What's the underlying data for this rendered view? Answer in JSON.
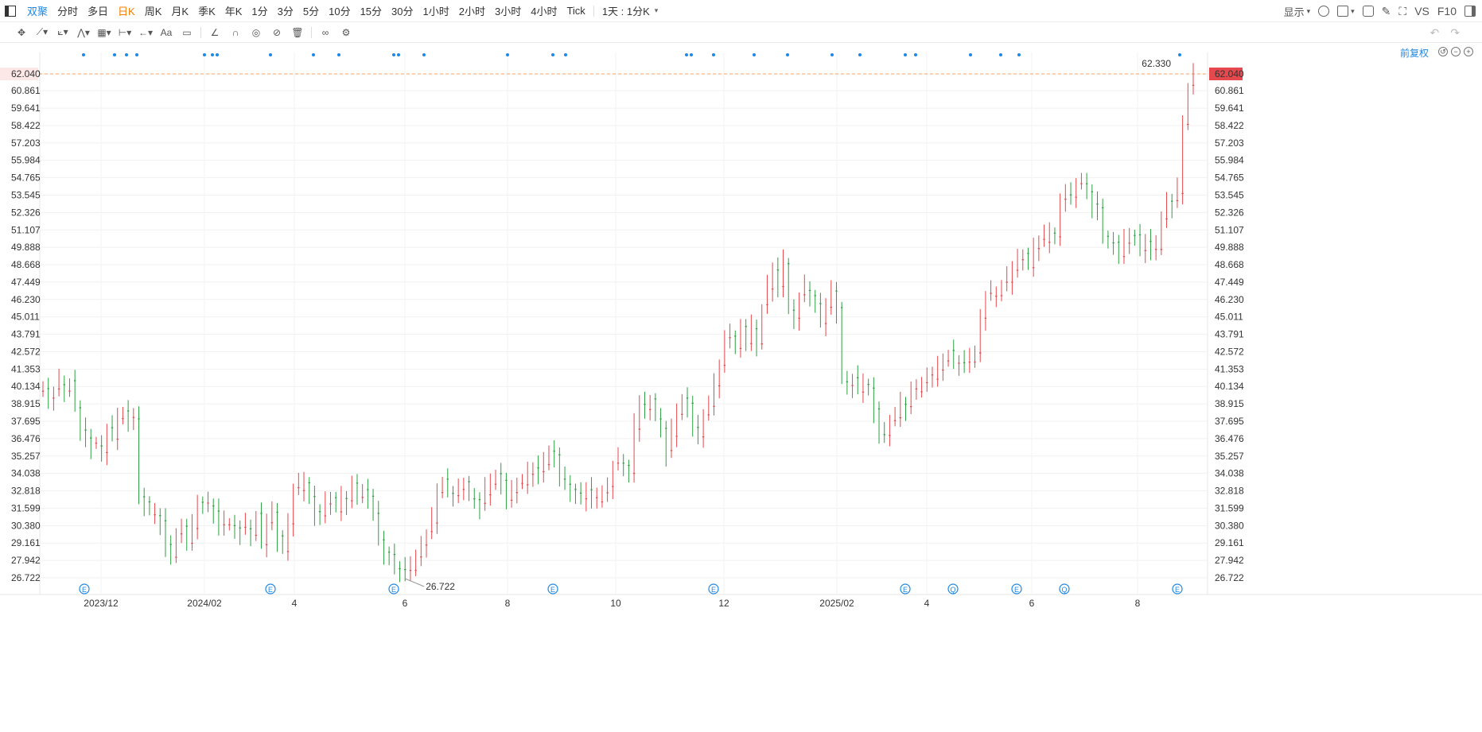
{
  "tabs": [
    {
      "label": "双聚",
      "state": "blue"
    },
    {
      "label": "分时",
      "state": ""
    },
    {
      "label": "多日",
      "state": ""
    },
    {
      "label": "日K",
      "state": "active"
    },
    {
      "label": "周K",
      "state": ""
    },
    {
      "label": "月K",
      "state": ""
    },
    {
      "label": "季K",
      "state": ""
    },
    {
      "label": "年K",
      "state": ""
    },
    {
      "label": "1分",
      "state": ""
    },
    {
      "label": "3分",
      "state": ""
    },
    {
      "label": "5分",
      "state": ""
    },
    {
      "label": "10分",
      "state": ""
    },
    {
      "label": "15分",
      "state": ""
    },
    {
      "label": "30分",
      "state": ""
    },
    {
      "label": "1小时",
      "state": ""
    },
    {
      "label": "2小时",
      "state": ""
    },
    {
      "label": "3小时",
      "state": ""
    },
    {
      "label": "4小时",
      "state": ""
    },
    {
      "label": "Tick",
      "state": ""
    }
  ],
  "period_select": "1天 : 1分K",
  "right_tools": {
    "display_label": "显示",
    "vs_label": "VS",
    "f10_label": "F10"
  },
  "adjust_label": "前复权",
  "colors": {
    "up": "#e5484d",
    "down": "#2ea043",
    "accent": "#1e88e5",
    "price_line": "#f5a060",
    "price_tag": "#e5484d"
  },
  "chart_data": {
    "type": "candlestick",
    "y_ticks": [
      "62.040",
      "60.861",
      "59.641",
      "58.422",
      "57.203",
      "55.984",
      "54.765",
      "53.545",
      "52.326",
      "51.107",
      "49.888",
      "48.668",
      "47.449",
      "46.230",
      "45.011",
      "43.791",
      "42.572",
      "41.353",
      "40.134",
      "38.915",
      "37.695",
      "36.476",
      "35.257",
      "34.038",
      "32.818",
      "31.599",
      "30.380",
      "29.161",
      "27.942",
      "26.722"
    ],
    "ylim": [
      26.722,
      62.04
    ],
    "x_ticks": [
      "2023/12",
      "2024/02",
      "4",
      "6",
      "8",
      "10",
      "12",
      "2025/02",
      "4",
      "6",
      "8"
    ],
    "last_price": "62.040",
    "high_label": "62.330",
    "low_label": "26.722",
    "event_markers": [
      "E",
      "E",
      "E",
      "E",
      "E",
      "E",
      "Q",
      "E",
      "Q",
      "E"
    ],
    "close_series": [
      40.1,
      39.2,
      39.6,
      40.5,
      39.8,
      40.3,
      39.0,
      37.2,
      36.4,
      35.8,
      36.2,
      35.5,
      37.0,
      36.8,
      38.0,
      38.3,
      37.6,
      38.1,
      32.4,
      31.8,
      31.5,
      31.2,
      30.6,
      28.7,
      28.4,
      29.8,
      30.1,
      29.5,
      30.3,
      31.9,
      31.6,
      32.0,
      31.4,
      30.2,
      30.8,
      30.5,
      30.1,
      29.9,
      30.4,
      29.7,
      31.0,
      29.4,
      30.7,
      31.2,
      29.3,
      28.8,
      30.5,
      32.8,
      33.2,
      33.5,
      32.3,
      31.0,
      31.3,
      31.9,
      32.1,
      31.7,
      32.4,
      32.0,
      33.0,
      32.6,
      32.9,
      32.2,
      31.6,
      29.5,
      28.4,
      28.0,
      27.6,
      27.3,
      27.0,
      27.6,
      28.3,
      28.9,
      29.6,
      30.8,
      32.7,
      33.4,
      33.0,
      32.6,
      32.8,
      33.1,
      32.5,
      32.2,
      31.7,
      32.9,
      33.4,
      33.9,
      33.2,
      32.4,
      32.7,
      33.1,
      33.6,
      34.1,
      34.3,
      33.8,
      34.9,
      35.6,
      35.1,
      34.0,
      33.4,
      32.8,
      32.3,
      32.5,
      32.9,
      32.1,
      32.4,
      32.8,
      33.0,
      34.4,
      35.0,
      34.6,
      33.8,
      37.5,
      39.0,
      38.4,
      38.9,
      38.1,
      37.2,
      35.4,
      37.0,
      38.3,
      39.2,
      38.6,
      37.5,
      36.6,
      37.9,
      39.1,
      40.3,
      41.5,
      43.2,
      43.9,
      42.8,
      44.1,
      43.5,
      44.3,
      43.0,
      45.5,
      47.2,
      48.3,
      46.9,
      49.1,
      45.6,
      44.8,
      46.2,
      47.1,
      46.5,
      45.7,
      44.9,
      45.8,
      46.7,
      45.3,
      40.7,
      40.2,
      40.5,
      40.1,
      40.4,
      39.9,
      38.2,
      37.0,
      36.7,
      37.5,
      38.3,
      39.0,
      38.6,
      39.6,
      40.0,
      40.4,
      40.7,
      41.0,
      41.4,
      41.8,
      42.3,
      42.0,
      41.8,
      41.6,
      42.2,
      42.6,
      44.8,
      46.3,
      46.7,
      46.5,
      47.2,
      47.8,
      48.4,
      48.9,
      49.1,
      48.7,
      49.8,
      50.2,
      50.6,
      51.0,
      50.5,
      52.9,
      53.8,
      53.4,
      54.1,
      54.7,
      53.9,
      52.8,
      52.3,
      50.9,
      50.2,
      50.0,
      49.6,
      50.3,
      50.6,
      50.4,
      49.9,
      50.3,
      49.5,
      50.1,
      52.0,
      53.0,
      52.8,
      53.9,
      58.5,
      61.0,
      62.04
    ]
  }
}
